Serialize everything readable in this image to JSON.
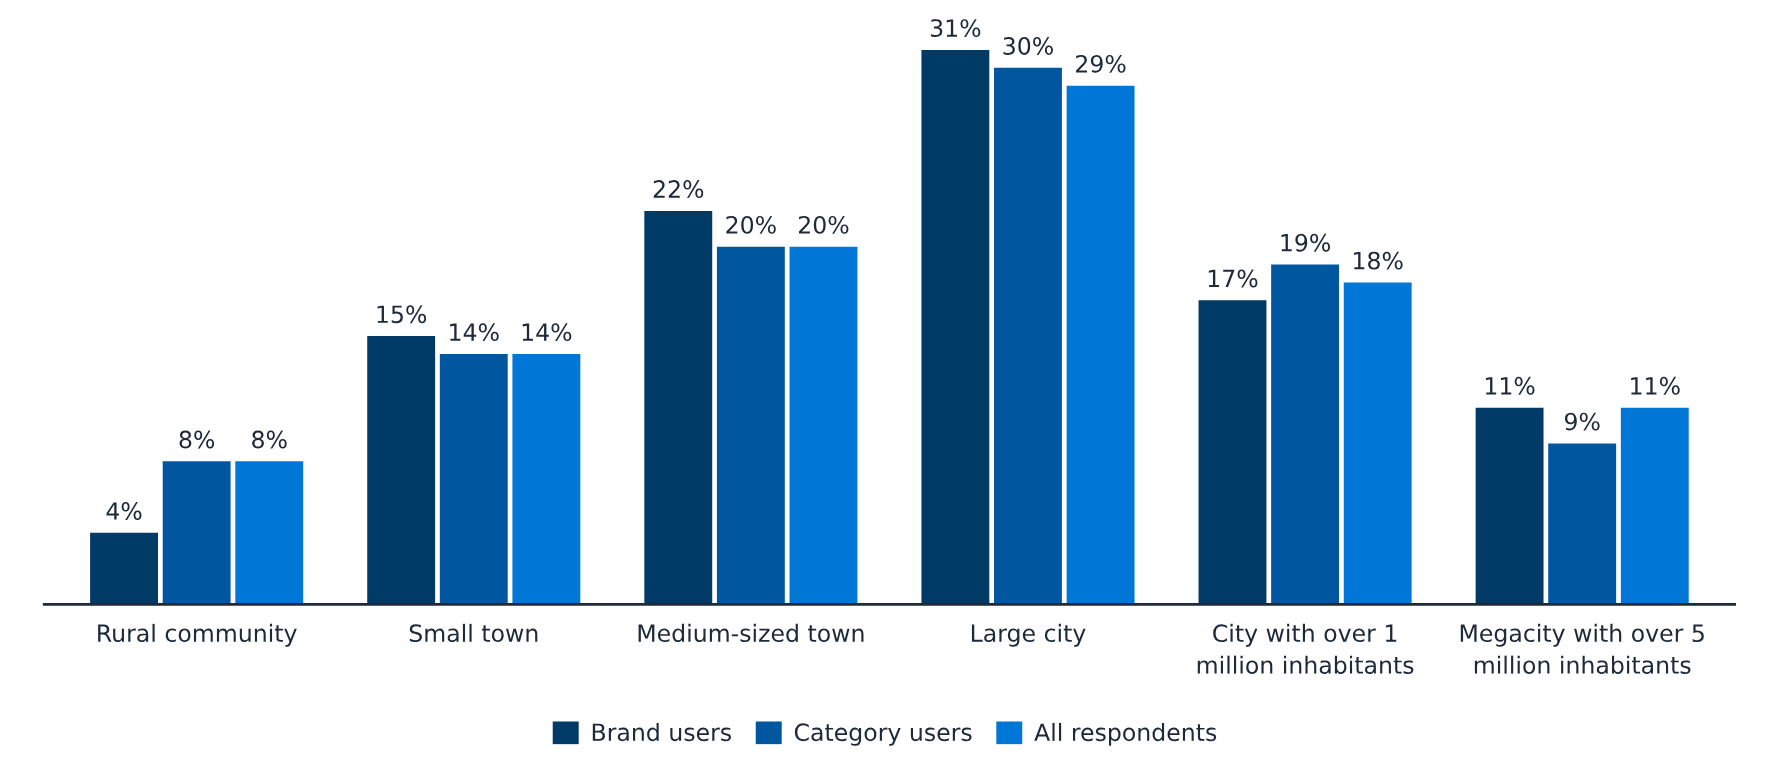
{
  "chart_data": {
    "type": "bar",
    "categories": [
      "Rural community",
      "Small town",
      "Medium-sized town",
      "Large city",
      "City with over 1 million inhabitants",
      "Megacity with over 5 million inhabitants"
    ],
    "series": [
      {
        "name": "Brand users",
        "color": "#003a66",
        "values": [
          4,
          15,
          22,
          31,
          17,
          11
        ],
        "value_labels": [
          "4%",
          "15%",
          "22%",
          "31%",
          "17%",
          "11%"
        ]
      },
      {
        "name": "Category users",
        "color": "#00579f",
        "values": [
          8,
          14,
          20,
          30,
          19,
          9
        ],
        "value_labels": [
          "8%",
          "14%",
          "20%",
          "30%",
          "19%",
          "9%"
        ]
      },
      {
        "name": "All respondents",
        "color": "#0077d6",
        "values": [
          8,
          14,
          20,
          29,
          18,
          11
        ],
        "value_labels": [
          "8%",
          "14%",
          "20%",
          "29%",
          "18%",
          "11%"
        ]
      }
    ],
    "grid": false,
    "legend": "bottom"
  }
}
